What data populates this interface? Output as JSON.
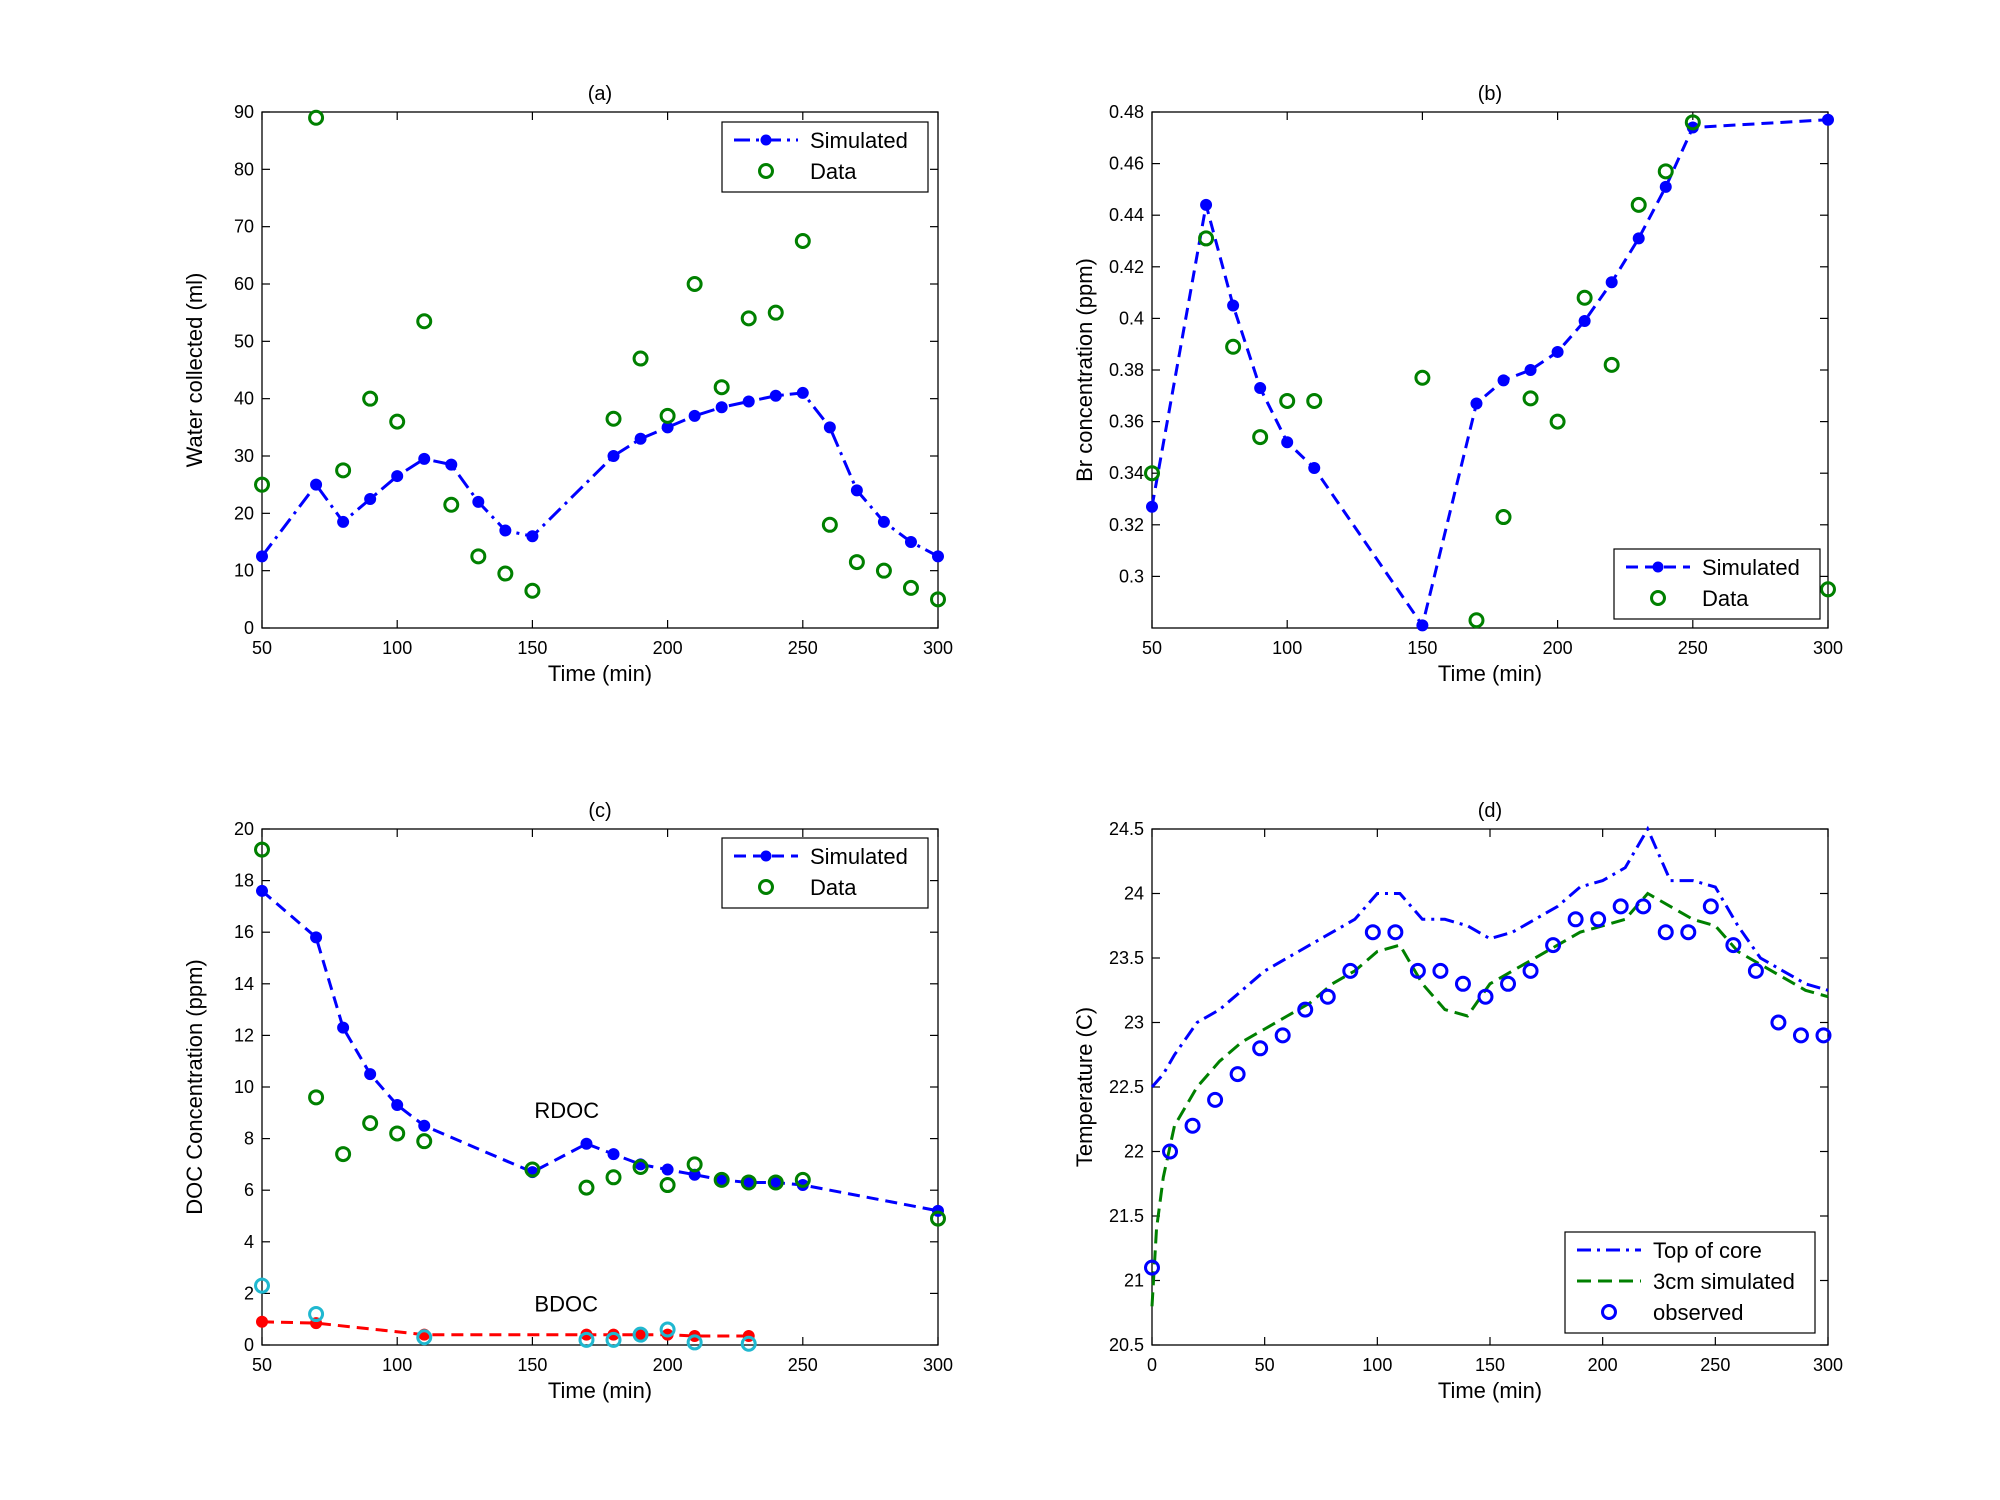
{
  "figure": {
    "panels": [
      {
        "id": "a",
        "title": "(a)",
        "chart_data": {
          "type": "line",
          "title": "(a)",
          "xlabel": "Time (min)",
          "ylabel": "Water collected (ml)",
          "xlim": [
            50,
            300
          ],
          "ylim": [
            0,
            90
          ],
          "xticks": [
            50,
            100,
            150,
            200,
            250,
            300
          ],
          "yticks": [
            0,
            10,
            20,
            30,
            40,
            50,
            60,
            70,
            80,
            90
          ],
          "legend_position": "top-right",
          "series": [
            {
              "name": "Simulated",
              "style": "dashdot-dot",
              "color": "#0000ff",
              "x": [
                50,
                70,
                80,
                90,
                100,
                110,
                120,
                130,
                140,
                150,
                180,
                190,
                200,
                210,
                220,
                230,
                240,
                250,
                260,
                270,
                280,
                290,
                300
              ],
              "y": [
                12.5,
                25,
                18.5,
                22.5,
                26.5,
                29.5,
                28.5,
                22,
                17,
                16,
                30,
                33,
                35,
                37,
                38.5,
                39.5,
                40.5,
                41,
                35,
                24,
                18.5,
                15,
                12.5
              ]
            },
            {
              "name": "Data",
              "style": "circle",
              "color": "#008000",
              "x": [
                50,
                70,
                80,
                90,
                100,
                110,
                120,
                130,
                140,
                150,
                180,
                190,
                200,
                210,
                220,
                230,
                240,
                250,
                260,
                270,
                280,
                290,
                300
              ],
              "y": [
                25,
                89,
                27.5,
                40,
                36,
                53.5,
                21.5,
                12.5,
                9.5,
                6.5,
                36.5,
                47,
                37,
                60,
                42,
                54,
                55,
                67.5,
                18,
                11.5,
                10,
                7,
                5
              ]
            }
          ]
        }
      },
      {
        "id": "b",
        "title": "(b)",
        "chart_data": {
          "type": "line",
          "title": "(b)",
          "xlabel": "Time (min)",
          "ylabel": "Br concentration (ppm)",
          "xlim": [
            50,
            300
          ],
          "ylim": [
            0.28,
            0.48
          ],
          "xticks": [
            50,
            100,
            150,
            200,
            250,
            300
          ],
          "yticks": [
            0.3,
            0.32,
            0.34,
            0.36,
            0.38,
            0.4,
            0.42,
            0.44,
            0.46,
            0.48
          ],
          "ytick_labels": [
            "0.3",
            "0.32",
            "0.34",
            "0.36",
            "0.38",
            "0.4",
            "0.42",
            "0.44",
            "0.46",
            "0.48"
          ],
          "legend_position": "bottom-right",
          "series": [
            {
              "name": "Simulated",
              "style": "dashed-dot",
              "color": "#0000ff",
              "x": [
                50,
                70,
                80,
                90,
                100,
                110,
                150,
                170,
                180,
                190,
                200,
                210,
                220,
                230,
                240,
                250,
                300
              ],
              "y": [
                0.327,
                0.444,
                0.405,
                0.373,
                0.352,
                0.342,
                0.281,
                0.367,
                0.376,
                0.38,
                0.387,
                0.399,
                0.414,
                0.431,
                0.451,
                0.474,
                0.477
              ]
            },
            {
              "name": "Data",
              "style": "circle",
              "color": "#008000",
              "x": [
                50,
                70,
                80,
                90,
                100,
                110,
                150,
                170,
                180,
                190,
                200,
                210,
                220,
                230,
                240,
                250,
                300
              ],
              "y": [
                0.34,
                0.431,
                0.389,
                0.354,
                0.368,
                0.368,
                0.377,
                0.283,
                0.323,
                0.369,
                0.36,
                0.408,
                0.382,
                0.444,
                0.457,
                0.476,
                0.295
              ]
            }
          ]
        }
      },
      {
        "id": "c",
        "title": "(c)",
        "chart_data": {
          "type": "line",
          "title": "(c)",
          "xlabel": "Time (min)",
          "ylabel": "DOC Concentration (ppm)",
          "xlim": [
            50,
            300
          ],
          "ylim": [
            0,
            20
          ],
          "xticks": [
            50,
            100,
            150,
            200,
            250,
            300
          ],
          "yticks": [
            0,
            2,
            4,
            6,
            8,
            10,
            12,
            14,
            16,
            18,
            20
          ],
          "legend_position": "top-right",
          "annotations": [
            {
              "text": "RDOC",
              "x": 150,
              "y": 8.8
            },
            {
              "text": "BDOC",
              "x": 150,
              "y": 1.3
            }
          ],
          "series": [
            {
              "name": "Simulated",
              "style": "dashed-dot",
              "color": "#0000ff",
              "x": [
                50,
                70,
                80,
                90,
                100,
                110,
                150,
                170,
                180,
                190,
                200,
                210,
                220,
                230,
                240,
                250,
                300
              ],
              "y": [
                17.6,
                15.8,
                12.3,
                10.5,
                9.3,
                8.5,
                6.7,
                7.8,
                7.4,
                7.0,
                6.8,
                6.6,
                6.4,
                6.3,
                6.3,
                6.2,
                5.2
              ]
            },
            {
              "name": "Data",
              "style": "circle",
              "color": "#008000",
              "x": [
                50,
                70,
                80,
                90,
                100,
                110,
                150,
                170,
                180,
                190,
                200,
                210,
                220,
                230,
                240,
                250,
                300
              ],
              "y": [
                19.2,
                9.6,
                7.4,
                8.6,
                8.2,
                7.9,
                6.8,
                6.1,
                6.5,
                6.9,
                6.2,
                7.0,
                6.4,
                6.3,
                6.3,
                6.4,
                4.9
              ]
            },
            {
              "style": "dashed-dot",
              "color": "#ff0000",
              "x": [
                50,
                70,
                110,
                170,
                180,
                190,
                200,
                210,
                230
              ],
              "y": [
                0.9,
                0.85,
                0.4,
                0.4,
                0.4,
                0.4,
                0.4,
                0.35,
                0.35
              ]
            },
            {
              "style": "circle",
              "color": "#20b8d0",
              "x": [
                50,
                70,
                110,
                170,
                180,
                190,
                200,
                210,
                230
              ],
              "y": [
                2.3,
                1.2,
                0.3,
                0.2,
                0.2,
                0.4,
                0.6,
                0.1,
                0.05
              ]
            }
          ]
        }
      },
      {
        "id": "d",
        "title": "(d)",
        "chart_data": {
          "type": "line",
          "title": "(d)",
          "xlabel": "Time (min)",
          "ylabel": "Temperature (C)",
          "xlim": [
            0,
            300
          ],
          "ylim": [
            20.5,
            24.5
          ],
          "xticks": [
            0,
            50,
            100,
            150,
            200,
            250,
            300
          ],
          "yticks": [
            20.5,
            21,
            21.5,
            22,
            22.5,
            23,
            23.5,
            24,
            24.5
          ],
          "legend_position": "bottom-right",
          "series": [
            {
              "name": "Top of core",
              "style": "dashdot",
              "color": "#0000ff",
              "x": [
                0,
                5,
                10,
                20,
                30,
                40,
                50,
                60,
                70,
                80,
                90,
                100,
                110,
                120,
                130,
                140,
                150,
                160,
                170,
                180,
                190,
                200,
                210,
                220,
                230,
                240,
                250,
                260,
                270,
                280,
                290,
                300
              ],
              "y": [
                22.5,
                22.6,
                22.75,
                23.0,
                23.1,
                23.25,
                23.4,
                23.5,
                23.6,
                23.7,
                23.8,
                24.0,
                24.0,
                23.8,
                23.8,
                23.75,
                23.65,
                23.7,
                23.8,
                23.9,
                24.05,
                24.1,
                24.2,
                24.5,
                24.1,
                24.1,
                24.05,
                23.75,
                23.5,
                23.4,
                23.3,
                23.25
              ]
            },
            {
              "name": "3cm simulated",
              "style": "dashed",
              "color": "#008000",
              "x": [
                0,
                2,
                5,
                10,
                20,
                30,
                40,
                50,
                60,
                70,
                80,
                90,
                100,
                110,
                120,
                130,
                140,
                150,
                160,
                170,
                180,
                190,
                200,
                210,
                220,
                230,
                240,
                250,
                260,
                270,
                280,
                290,
                300
              ],
              "y": [
                20.8,
                21.4,
                21.8,
                22.2,
                22.5,
                22.7,
                22.85,
                22.95,
                23.05,
                23.15,
                23.3,
                23.4,
                23.55,
                23.6,
                23.3,
                23.1,
                23.05,
                23.3,
                23.4,
                23.5,
                23.6,
                23.7,
                23.75,
                23.8,
                24.0,
                23.9,
                23.8,
                23.75,
                23.55,
                23.45,
                23.35,
                23.25,
                23.2
              ]
            },
            {
              "name": "observed",
              "style": "circle",
              "color": "#0000ff",
              "x": [
                0,
                8,
                18,
                28,
                38,
                48,
                58,
                68,
                78,
                88,
                98,
                108,
                118,
                128,
                138,
                148,
                158,
                168,
                178,
                188,
                198,
                208,
                218,
                228,
                238,
                248,
                258,
                268,
                278,
                288,
                298
              ],
              "y": [
                21.1,
                22.0,
                22.2,
                22.4,
                22.6,
                22.8,
                22.9,
                23.1,
                23.2,
                23.4,
                23.7,
                23.7,
                23.4,
                23.4,
                23.3,
                23.2,
                23.3,
                23.4,
                23.6,
                23.8,
                23.8,
                23.9,
                23.9,
                23.7,
                23.7,
                23.9,
                23.6,
                23.4,
                23.0,
                22.9,
                22.9
              ]
            }
          ]
        }
      }
    ]
  }
}
